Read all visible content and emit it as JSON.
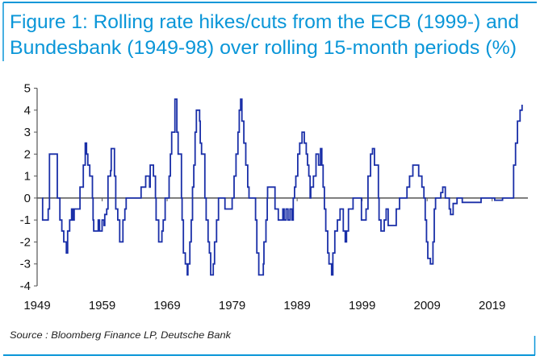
{
  "title_lines": [
    "Figure 1: Rolling rate hikes/cuts from the ECB (1999-) and",
    "Bundesbank (1949-98) over rolling 15-month periods (%)"
  ],
  "source": "Source : Bloomberg Finance LP, Deutsche Bank",
  "colors": {
    "frame": "#0a96d8",
    "series": "#1a2fa8",
    "axis": "#555555"
  },
  "chart_data": {
    "type": "line",
    "step": true,
    "title": "Figure 1: Rolling rate hikes/cuts from the ECB (1999-) and Bundesbank (1949-98) over rolling 15-month periods (%)",
    "xlabel": "",
    "ylabel": "",
    "xlim": [
      1949,
      2024.5
    ],
    "ylim": [
      -4,
      5
    ],
    "x_ticks": [
      1949,
      1959,
      1969,
      1979,
      1989,
      1999,
      2009,
      2019
    ],
    "y_ticks": [
      -4,
      -3,
      -2,
      -1,
      0,
      1,
      2,
      3,
      4,
      5
    ],
    "grid": false,
    "legend": "none",
    "points": [
      [
        1949.8,
        0
      ],
      [
        1949.85,
        -1
      ],
      [
        1950.7,
        -0.5
      ],
      [
        1950.9,
        2
      ],
      [
        1952.1,
        0
      ],
      [
        1952.5,
        -1
      ],
      [
        1952.8,
        -1.5
      ],
      [
        1953.1,
        -2
      ],
      [
        1953.5,
        -2.5
      ],
      [
        1953.7,
        -1.5
      ],
      [
        1954.0,
        -1
      ],
      [
        1954.3,
        -0.5
      ],
      [
        1954.5,
        -1
      ],
      [
        1954.7,
        -0.5
      ],
      [
        1955.6,
        0.5
      ],
      [
        1956.1,
        1.5
      ],
      [
        1956.4,
        2.5
      ],
      [
        1956.6,
        2
      ],
      [
        1956.8,
        1.5
      ],
      [
        1957.1,
        1
      ],
      [
        1957.5,
        0
      ],
      [
        1957.6,
        -1
      ],
      [
        1957.7,
        -1.5
      ],
      [
        1958.4,
        -1
      ],
      [
        1958.6,
        -1.5
      ],
      [
        1959.0,
        -1
      ],
      [
        1959.3,
        -1.25
      ],
      [
        1959.4,
        -0.75
      ],
      [
        1959.7,
        -0.5
      ],
      [
        1959.9,
        1
      ],
      [
        1960.3,
        1.25
      ],
      [
        1960.4,
        2.25
      ],
      [
        1960.9,
        1
      ],
      [
        1961.1,
        -0.5
      ],
      [
        1961.4,
        -1
      ],
      [
        1961.7,
        -2
      ],
      [
        1962.2,
        -1
      ],
      [
        1962.5,
        -0.5
      ],
      [
        1962.7,
        0
      ],
      [
        1965.0,
        0.5
      ],
      [
        1965.7,
        1
      ],
      [
        1966.3,
        0.5
      ],
      [
        1966.4,
        1.5
      ],
      [
        1966.9,
        1
      ],
      [
        1967.2,
        0
      ],
      [
        1967.3,
        -1
      ],
      [
        1967.7,
        -2
      ],
      [
        1968.2,
        -1.5
      ],
      [
        1968.4,
        -1
      ],
      [
        1968.7,
        0
      ],
      [
        1969.3,
        1
      ],
      [
        1969.5,
        2
      ],
      [
        1969.7,
        3
      ],
      [
        1970.2,
        4.5
      ],
      [
        1970.5,
        3
      ],
      [
        1970.7,
        2
      ],
      [
        1971.2,
        0
      ],
      [
        1971.3,
        -1
      ],
      [
        1971.5,
        -2.5
      ],
      [
        1971.8,
        -3
      ],
      [
        1972.1,
        -3.5
      ],
      [
        1972.2,
        -3
      ],
      [
        1972.5,
        -2
      ],
      [
        1972.7,
        -1
      ],
      [
        1972.9,
        0.5
      ],
      [
        1973.1,
        1.5
      ],
      [
        1973.3,
        3
      ],
      [
        1973.5,
        4
      ],
      [
        1974.0,
        3.5
      ],
      [
        1974.1,
        2.5
      ],
      [
        1974.3,
        2
      ],
      [
        1974.8,
        0
      ],
      [
        1975.0,
        -1
      ],
      [
        1975.3,
        -2
      ],
      [
        1975.5,
        -2.5
      ],
      [
        1975.7,
        -3.5
      ],
      [
        1976.1,
        -3
      ],
      [
        1976.3,
        -2
      ],
      [
        1976.6,
        -1
      ],
      [
        1976.9,
        0
      ],
      [
        1977.9,
        -0.5
      ],
      [
        1979.0,
        0
      ],
      [
        1979.3,
        1
      ],
      [
        1979.6,
        2
      ],
      [
        1979.9,
        3
      ],
      [
        1980.1,
        4
      ],
      [
        1980.3,
        4.5
      ],
      [
        1980.5,
        3.5
      ],
      [
        1980.8,
        2.5
      ],
      [
        1981.1,
        1.5
      ],
      [
        1981.4,
        0.5
      ],
      [
        1981.6,
        0
      ],
      [
        1982.6,
        -1
      ],
      [
        1982.8,
        -2.5
      ],
      [
        1983.1,
        -3.5
      ],
      [
        1983.8,
        -3
      ],
      [
        1983.9,
        -2
      ],
      [
        1984.2,
        -1
      ],
      [
        1984.4,
        0
      ],
      [
        1984.45,
        0.5
      ],
      [
        1985.6,
        -0.5
      ],
      [
        1986.1,
        -1
      ],
      [
        1986.8,
        -0.5
      ],
      [
        1987.0,
        -1
      ],
      [
        1987.3,
        -0.5
      ],
      [
        1987.6,
        -1
      ],
      [
        1987.9,
        -0.5
      ],
      [
        1988.2,
        -1
      ],
      [
        1988.4,
        0
      ],
      [
        1988.6,
        0.5
      ],
      [
        1988.8,
        1
      ],
      [
        1989.1,
        2
      ],
      [
        1989.4,
        2.5
      ],
      [
        1989.75,
        3
      ],
      [
        1990.1,
        2.5
      ],
      [
        1990.4,
        2
      ],
      [
        1990.6,
        1.5
      ],
      [
        1990.8,
        1
      ],
      [
        1991.0,
        0
      ],
      [
        1991.1,
        0.5
      ],
      [
        1991.5,
        1
      ],
      [
        1991.9,
        2
      ],
      [
        1992.3,
        1.5
      ],
      [
        1992.6,
        2.25
      ],
      [
        1992.8,
        1.5
      ],
      [
        1993.0,
        0.5
      ],
      [
        1993.2,
        -0.5
      ],
      [
        1993.4,
        -1.5
      ],
      [
        1993.7,
        -2.5
      ],
      [
        1993.9,
        -3
      ],
      [
        1994.3,
        -3.5
      ],
      [
        1994.5,
        -2.5
      ],
      [
        1994.8,
        -1.5
      ],
      [
        1995.2,
        -1
      ],
      [
        1995.6,
        -0.5
      ],
      [
        1996.1,
        -1.5
      ],
      [
        1996.4,
        -2
      ],
      [
        1996.6,
        -1.5
      ],
      [
        1996.9,
        -0.5
      ],
      [
        1997.6,
        0
      ],
      [
        1998.9,
        -1
      ],
      [
        1999.6,
        -0.5
      ],
      [
        1999.9,
        1
      ],
      [
        2000.3,
        2
      ],
      [
        2000.6,
        2.25
      ],
      [
        2000.9,
        1.5
      ],
      [
        2001.5,
        0
      ],
      [
        2001.6,
        -1
      ],
      [
        2001.9,
        -1.5
      ],
      [
        2002.4,
        -1
      ],
      [
        2002.7,
        -0.5
      ],
      [
        2003.0,
        -1.25
      ],
      [
        2004.25,
        -0.5
      ],
      [
        2004.75,
        0
      ],
      [
        2005.9,
        0.5
      ],
      [
        2006.3,
        1
      ],
      [
        2006.8,
        1.5
      ],
      [
        2007.7,
        1
      ],
      [
        2008.2,
        0.5
      ],
      [
        2008.5,
        0
      ],
      [
        2008.7,
        -1
      ],
      [
        2008.9,
        -2
      ],
      [
        2009.1,
        -2.75
      ],
      [
        2009.5,
        -3
      ],
      [
        2009.9,
        -2
      ],
      [
        2010.1,
        -0.5
      ],
      [
        2010.3,
        0
      ],
      [
        2011.1,
        0.25
      ],
      [
        2011.4,
        0.5
      ],
      [
        2011.8,
        0
      ],
      [
        2012.4,
        -0.5
      ],
      [
        2012.6,
        -0.75
      ],
      [
        2013.0,
        -0.25
      ],
      [
        2013.6,
        0
      ],
      [
        2014.4,
        -0.2
      ],
      [
        2017.3,
        0
      ],
      [
        2019.4,
        -0.1
      ],
      [
        2020.6,
        0
      ],
      [
        2022.3,
        1.5
      ],
      [
        2022.6,
        2.5
      ],
      [
        2022.9,
        3.5
      ],
      [
        2023.3,
        4
      ],
      [
        2023.6,
        4.25
      ]
    ]
  }
}
